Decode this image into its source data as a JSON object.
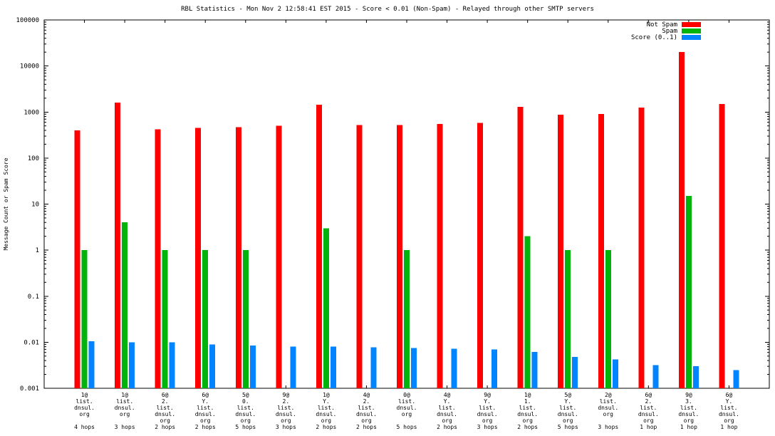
{
  "page": {
    "background": "#ffffff"
  },
  "chart_data": {
    "type": "bar",
    "title": "RBL Statistics - Mon Nov  2 12:58:41 EST 2015 - Score < 0.01 (Non-Spam) - Relayed through other SMTP servers",
    "ylabel": "Message Count or Spam Score",
    "xlabel": "",
    "y_scale": "log",
    "ylim": [
      0.001,
      100000
    ],
    "y_ticks": [
      0.001,
      0.01,
      0.1,
      1,
      10,
      100,
      1000,
      10000,
      100000
    ],
    "grid": false,
    "legend_position": "top-right",
    "categories": [
      [
        "1@",
        "list.",
        "dnsul.",
        "org",
        "",
        "4 hops"
      ],
      [
        "1@",
        "list.",
        "dnsul.",
        "org",
        "",
        "3 hops"
      ],
      [
        "6@",
        "2.",
        "list.",
        "dnsul.",
        "org",
        "2 hops"
      ],
      [
        "6@",
        "Y.",
        "list.",
        "dnsul.",
        "org",
        "2 hops"
      ],
      [
        "5@",
        "0.",
        "list.",
        "dnsul.",
        "org",
        "5 hops"
      ],
      [
        "9@",
        "2.",
        "list.",
        "dnsul.",
        "org",
        "3 hops"
      ],
      [
        "1@",
        "Y.",
        "list.",
        "dnsul.",
        "org",
        "2 hops"
      ],
      [
        "4@",
        "2.",
        "list.",
        "dnsul.",
        "org",
        "2 hops"
      ],
      [
        "0@",
        "list.",
        "dnsul.",
        "org",
        "",
        "5 hops"
      ],
      [
        "4@",
        "Y.",
        "list.",
        "dnsul.",
        "org",
        "2 hops"
      ],
      [
        "9@",
        "Y.",
        "list.",
        "dnsul.",
        "org",
        "3 hops"
      ],
      [
        "1@",
        "1.",
        "list.",
        "dnsul.",
        "org",
        "2 hops"
      ],
      [
        "5@",
        "Y.",
        "list.",
        "dnsul.",
        "org",
        "5 hops"
      ],
      [
        "2@",
        "list.",
        "dnsul.",
        "org",
        "",
        "3 hops"
      ],
      [
        "6@",
        "2.",
        "list.",
        "dnsul.",
        "org",
        "1 hop"
      ],
      [
        "9@",
        "3.",
        "list.",
        "dnsul.",
        "org",
        "1 hop"
      ],
      [
        "6@",
        "Y.",
        "list.",
        "dnsul.",
        "org",
        "1 hop"
      ]
    ],
    "series": [
      {
        "name": "Not Spam",
        "color": "#ff0000",
        "values": [
          400,
          1600,
          420,
          450,
          470,
          500,
          1450,
          520,
          520,
          550,
          580,
          1300,
          880,
          900,
          1250,
          20000,
          1500
        ]
      },
      {
        "name": "Spam",
        "color": "#00b40b",
        "values": [
          1,
          4,
          1,
          1,
          1,
          null,
          3,
          null,
          1,
          null,
          null,
          2,
          1,
          1,
          null,
          15,
          null
        ]
      },
      {
        "name": "Score (0..1)",
        "color": "#0084ff",
        "values": [
          0.0105,
          0.01,
          0.01,
          0.009,
          0.0085,
          0.008,
          0.008,
          0.0078,
          0.0075,
          0.0072,
          0.007,
          0.0062,
          0.0048,
          0.0042,
          0.0032,
          0.003,
          0.0025
        ]
      }
    ]
  }
}
